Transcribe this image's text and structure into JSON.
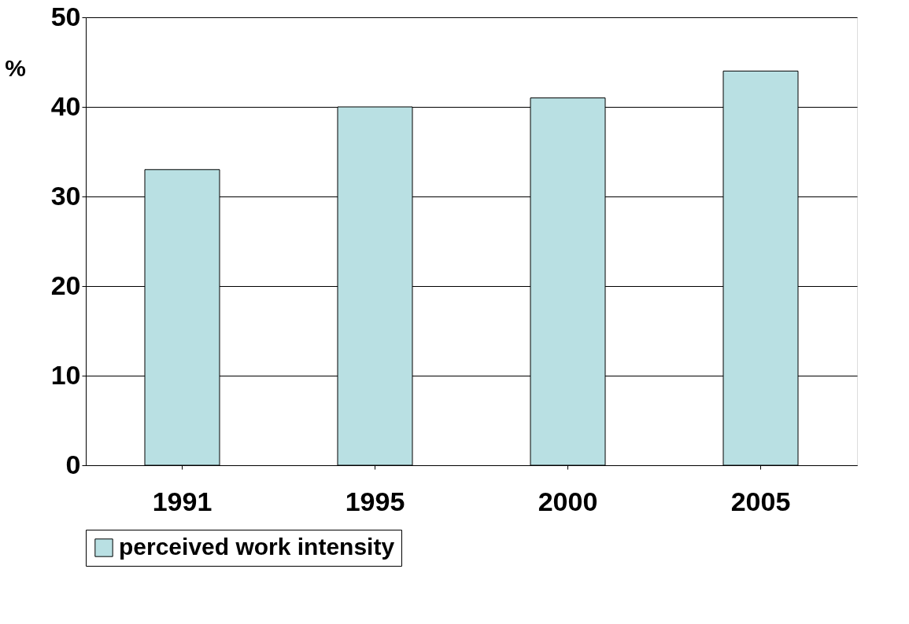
{
  "chart_data": {
    "type": "bar",
    "ylabel": "%",
    "categories": [
      "1991",
      "1995",
      "2000",
      "2005"
    ],
    "series": [
      {
        "name": "perceived work intensity",
        "color": "#b9e0e3",
        "values": [
          33,
          40,
          41,
          44
        ]
      }
    ],
    "ylim": [
      0,
      50
    ],
    "yticks": [
      0,
      10,
      20,
      30,
      40,
      50
    ],
    "grid": "y",
    "legend": "bottom"
  }
}
